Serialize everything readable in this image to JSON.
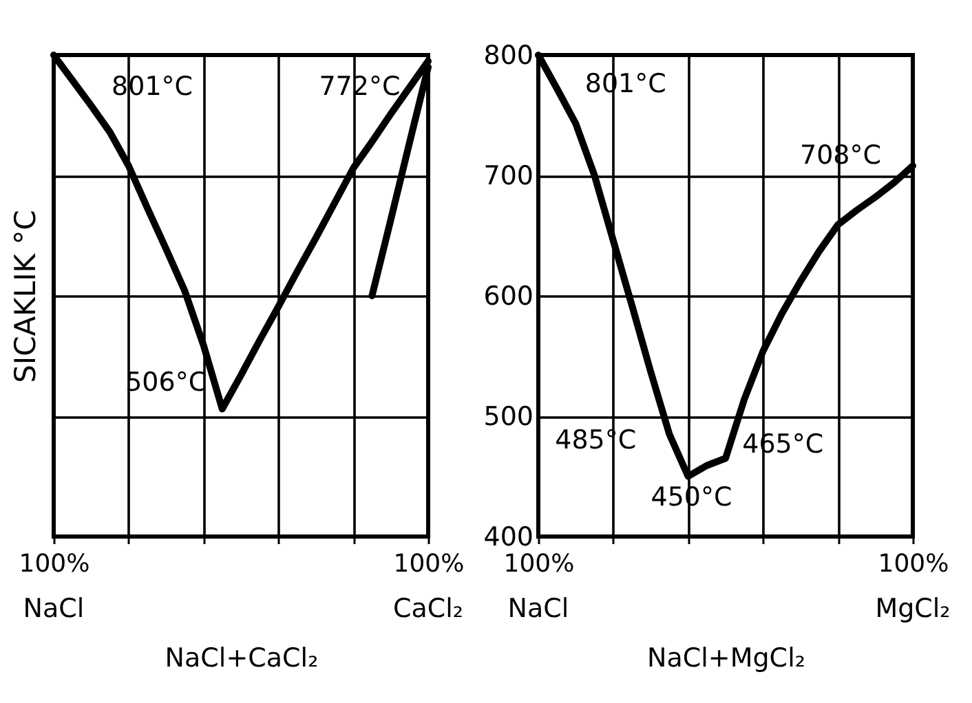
{
  "chart_data": [
    {
      "type": "line",
      "xlabel": "NaCl+CaCl₂",
      "ylabel": "SICAKLIK °C",
      "ylim": [
        400,
        800
      ],
      "categories": [
        "100%",
        null,
        null,
        null,
        null,
        null,
        null,
        null,
        null,
        null,
        null,
        null,
        null,
        null,
        null,
        null,
        null,
        null,
        null,
        null,
        "100%"
      ],
      "yticks": [
        400,
        500,
        600,
        700,
        800
      ],
      "tick_labels": "x",
      "grid": true,
      "series": [
        {
          "color": "#000000",
          "values": [
            800,
            779,
            758,
            736,
            708,
            673,
            639,
            604,
            559,
            506,
            534,
            563,
            591,
            620,
            648,
            677,
            706,
            728,
            751,
            773,
            795
          ]
        },
        {
          "color": "#000000",
          "values": [
            null,
            null,
            null,
            null,
            null,
            null,
            null,
            null,
            null,
            null,
            null,
            null,
            null,
            null,
            null,
            null,
            null,
            600,
            663,
            727,
            790
          ]
        }
      ],
      "annotations": [
        "801°C",
        "772°C",
        "506°C",
        "NaCl",
        "CaCl₂"
      ]
    },
    {
      "type": "line",
      "xlabel": "NaCl+MgCl₂",
      "ylim": [
        400,
        800
      ],
      "categories": [
        "100%",
        null,
        null,
        null,
        null,
        null,
        null,
        null,
        null,
        null,
        null,
        null,
        null,
        null,
        null,
        null,
        null,
        null,
        null,
        null,
        "100%"
      ],
      "yticks": [
        400,
        500,
        600,
        700,
        800
      ],
      "grid": true,
      "series": [
        {
          "color": "#000000",
          "values": [
            800,
            772,
            743,
            700,
            646,
            592,
            537,
            485,
            450,
            459,
            465,
            514,
            554,
            585,
            612,
            637,
            659,
            671,
            682,
            694,
            708
          ]
        }
      ],
      "annotations": [
        "801°C",
        "708°C",
        "485°C",
        "450°C",
        "465°C",
        "NaCl",
        "MgCl₂"
      ]
    }
  ]
}
